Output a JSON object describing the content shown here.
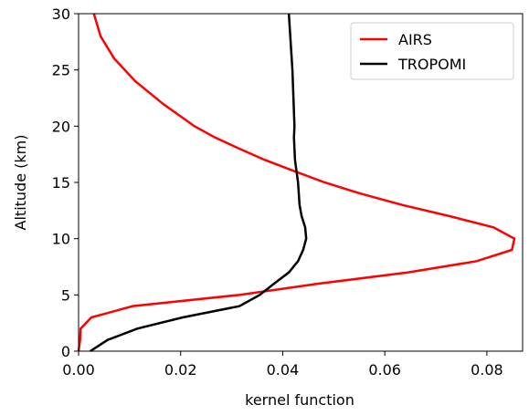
{
  "chart_data": {
    "type": "line",
    "xlabel": "kernel function",
    "ylabel": "Altitude (km)",
    "xlim": [
      0,
      0.087
    ],
    "ylim": [
      0,
      30
    ],
    "xticks": [
      {
        "value": 0,
        "label": "0.00"
      },
      {
        "value": 0.02,
        "label": "0.02"
      },
      {
        "value": 0.04,
        "label": "0.04"
      },
      {
        "value": 0.06,
        "label": "0.06"
      },
      {
        "value": 0.08,
        "label": "0.08"
      }
    ],
    "yticks": [
      0,
      5,
      10,
      15,
      20,
      25,
      30
    ],
    "legend": "upper right",
    "series": [
      {
        "name": "AIRS",
        "color": "#ff0000",
        "x": [
          0,
          0.0003,
          0.0004,
          0.0025,
          0.0106,
          0.0315,
          0.047,
          0.0646,
          0.078,
          0.0849,
          0.0854,
          0.0813,
          0.0727,
          0.0634,
          0.0553,
          0.0482,
          0.0423,
          0.0365,
          0.0315,
          0.0267,
          0.0227,
          0.0165,
          0.0111,
          0.007,
          0.0043,
          0.003
        ],
        "y": [
          0,
          1,
          2,
          3,
          4,
          5,
          6,
          7,
          8,
          9,
          10,
          11,
          12,
          13,
          14,
          15,
          16,
          17,
          18,
          19,
          20,
          22,
          24,
          26,
          28,
          30
        ]
      },
      {
        "name": "TROPOMI",
        "color": "#000000",
        "x": [
          0.0023,
          0.0057,
          0.0115,
          0.0204,
          0.0315,
          0.0355,
          0.0383,
          0.0412,
          0.043,
          0.044,
          0.0446,
          0.0444,
          0.0437,
          0.0433,
          0.043,
          0.0424,
          0.0422,
          0.0423,
          0.0419,
          0.0412
        ],
        "y": [
          0,
          1,
          2,
          3,
          4,
          5,
          6,
          7,
          8,
          9,
          10,
          11,
          12,
          13,
          15,
          17,
          19,
          20,
          25,
          30
        ]
      }
    ]
  }
}
